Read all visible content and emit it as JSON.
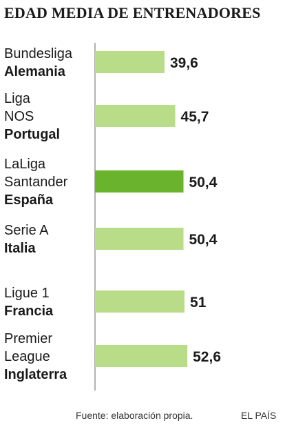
{
  "chart_data": {
    "type": "bar",
    "orientation": "horizontal",
    "title": "EDAD MEDIA DE ENTRENADORES",
    "categories": [
      {
        "league": [
          "Bundesliga"
        ],
        "country": "Alemania",
        "value": 39.6,
        "label": "39,6",
        "highlight": false
      },
      {
        "league": [
          "Liga",
          "NOS"
        ],
        "country": "Portugal",
        "value": 45.7,
        "label": "45,7",
        "highlight": false
      },
      {
        "league": [
          "LaLiga",
          "Santander"
        ],
        "country": "España",
        "value": 50.4,
        "label": "50,4",
        "highlight": true
      },
      {
        "league": [
          "Serie A"
        ],
        "country": "Italia",
        "value": 50.4,
        "label": "50,4",
        "highlight": false
      },
      {
        "league": [
          "Ligue 1"
        ],
        "country": "Francia",
        "value": 51,
        "label": "51",
        "highlight": false
      },
      {
        "league": [
          "Premier",
          "League"
        ],
        "country": "Inglaterra",
        "value": 52.6,
        "label": "52,6",
        "highlight": false
      }
    ],
    "values": [
      39.6,
      45.7,
      50.4,
      50.4,
      51,
      52.6
    ],
    "xlabel": "",
    "ylabel": "",
    "grid": false,
    "colors": {
      "bar": "#b9dc88",
      "highlight": "#6ab42d",
      "axis": "#666666"
    }
  },
  "footer": {
    "source": "Fuente: elaboración propia.",
    "brand": "EL PAÍS"
  }
}
